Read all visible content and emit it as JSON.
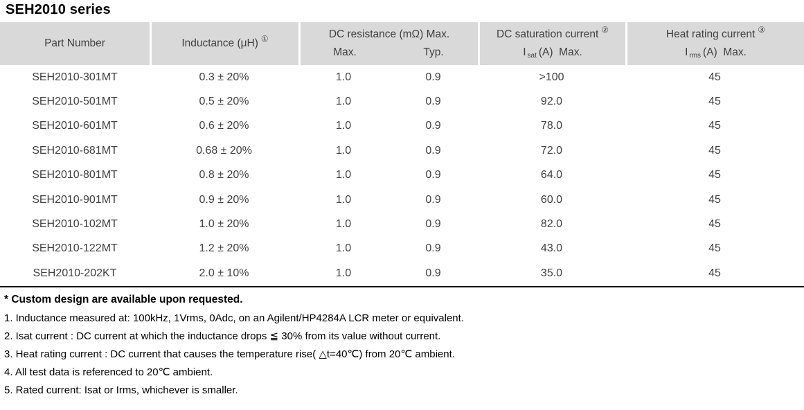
{
  "title": "SEH2010 series",
  "colors": {
    "header_bg": "#d9d9d9",
    "table_text": "#3f3f3f",
    "notes_text": "#000000",
    "bottom_rule": "#000000"
  },
  "table": {
    "header": {
      "part_number": "Part Number",
      "inductance_label": "Inductance (μH)",
      "inductance_ref": "①",
      "dc_resistance_group": "DC resistance (mΩ) Max.",
      "dc_res_max": "Max.",
      "dc_res_typ": "Typ.",
      "saturation_group": "DC saturation current",
      "saturation_ref": "②",
      "saturation_symbol": "I",
      "saturation_symbol_sub": "sat",
      "saturation_units": "(A)  Max.",
      "heat_group": "Heat rating current",
      "heat_ref": "③",
      "heat_symbol": "I",
      "heat_symbol_sub": "rms",
      "heat_units": "(A)  Max."
    },
    "column_keys": [
      "part-number",
      "inductance",
      "dcr-max",
      "dcr-typ",
      "isat",
      "irms"
    ],
    "rows": [
      [
        "SEH2010-301MT",
        "0.3 ± 20%",
        "1.0",
        "0.9",
        ">100",
        "45"
      ],
      [
        "SEH2010-501MT",
        "0.5 ± 20%",
        "1.0",
        "0.9",
        "92.0",
        "45"
      ],
      [
        "SEH2010-601MT",
        "0.6 ± 20%",
        "1.0",
        "0.9",
        "78.0",
        "45"
      ],
      [
        "SEH2010-681MT",
        "0.68 ± 20%",
        "1.0",
        "0.9",
        "72.0",
        "45"
      ],
      [
        "SEH2010-801MT",
        "0.8 ± 20%",
        "1.0",
        "0.9",
        "64.0",
        "45"
      ],
      [
        "SEH2010-901MT",
        "0.9 ± 20%",
        "1.0",
        "0.9",
        "60.0",
        "45"
      ],
      [
        "SEH2010-102MT",
        "1.0 ± 20%",
        "1.0",
        "0.9",
        "82.0",
        "45"
      ],
      [
        "SEH2010-122MT",
        "1.2 ± 20%",
        "1.0",
        "0.9",
        "43.0",
        "45"
      ],
      [
        "SEH2010-202KT",
        "2.0 ± 10%",
        "1.0",
        "0.9",
        "35.0",
        "45"
      ]
    ]
  },
  "notes": {
    "custom": "* Custom design are available upon requested.",
    "items": [
      "1. Inductance measured at: 100kHz, 1Vrms, 0Adc, on an Agilent/HP4284A LCR meter or equivalent.",
      "2. Isat current : DC current at which the inductance drops ≦ 30% from its value without current.",
      "3. Heat rating current : DC current that causes the temperature rise( △t=40℃) from 20℃ ambient.",
      "4. All test data is referenced to 20℃ ambient.",
      "5. Rated current: Isat or Irms, whichever is smaller."
    ]
  }
}
